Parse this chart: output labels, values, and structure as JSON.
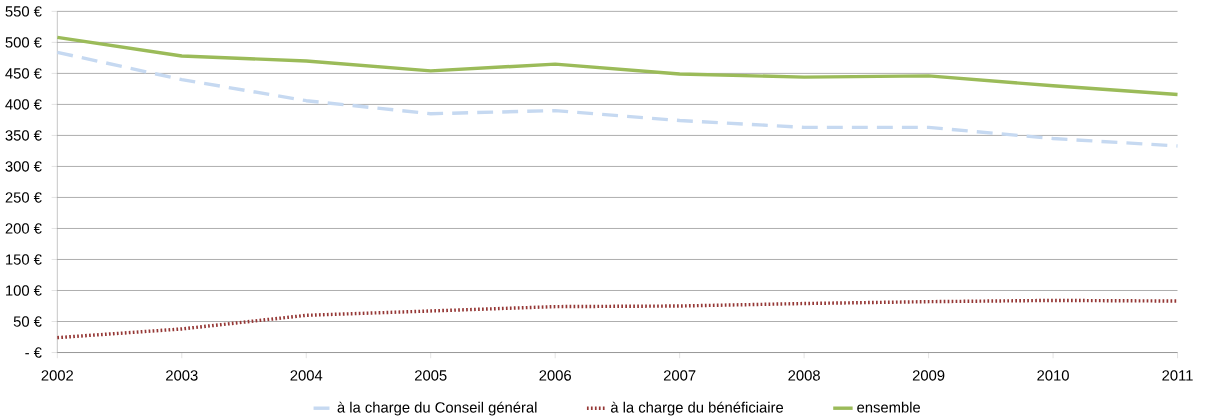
{
  "chart_data": {
    "type": "line",
    "categories": [
      "2002",
      "2003",
      "2004",
      "2005",
      "2006",
      "2007",
      "2008",
      "2009",
      "2010",
      "2011"
    ],
    "series": [
      {
        "name": "à la charge du Conseil général",
        "color": "#c6d9f1",
        "line_style": "dashed",
        "values": [
          484,
          440,
          406,
          385,
          390,
          374,
          363,
          363,
          345,
          333
        ]
      },
      {
        "name": "à la charge du bénéficiaire",
        "color": "#953735",
        "line_style": "dotted",
        "values": [
          24,
          38,
          60,
          67,
          74,
          75,
          79,
          82,
          84,
          83
        ]
      },
      {
        "name": "ensemble",
        "color": "#9bbb59",
        "line_style": "solid",
        "values": [
          508,
          478,
          470,
          454,
          465,
          449,
          444,
          446,
          430,
          416
        ]
      }
    ],
    "ylim": [
      0,
      550
    ],
    "yticks": [
      {
        "value": 0,
        "label": "-  €"
      },
      {
        "value": 50,
        "label": "50 €"
      },
      {
        "value": 100,
        "label": "100 €"
      },
      {
        "value": 150,
        "label": "150 €"
      },
      {
        "value": 200,
        "label": "200 €"
      },
      {
        "value": 250,
        "label": "250 €"
      },
      {
        "value": 300,
        "label": "300 €"
      },
      {
        "value": 350,
        "label": "350 €"
      },
      {
        "value": 400,
        "label": "400 €"
      },
      {
        "value": 450,
        "label": "450 €"
      },
      {
        "value": 500,
        "label": "500 €"
      },
      {
        "value": 550,
        "label": "550 €"
      }
    ],
    "grid": "y",
    "legend": "bottom",
    "marker": "none"
  }
}
